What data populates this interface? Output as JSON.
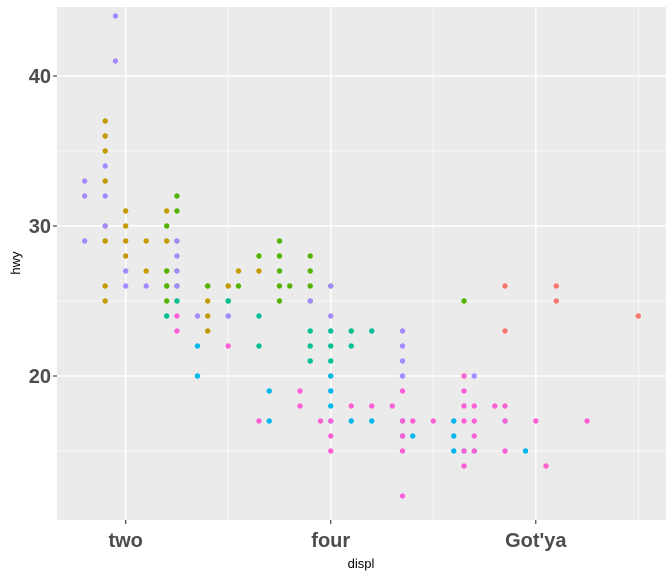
{
  "chart_data": {
    "type": "scatter",
    "title": "",
    "xlabel": "displ",
    "ylabel": "hwy",
    "xlim": [
      1.33,
      7.27
    ],
    "ylim": [
      10.4,
      44.6
    ],
    "x_breaks": [
      2,
      4,
      6
    ],
    "x_tick_labels": [
      "two",
      "four",
      "Got'ya"
    ],
    "x_minor_breaks": [
      3,
      5,
      7
    ],
    "y_breaks": [
      20,
      30,
      40
    ],
    "y_tick_labels": [
      "20",
      "30",
      "40"
    ],
    "y_minor_breaks": [
      15,
      25,
      35
    ],
    "grid": true,
    "legend": "none",
    "series": [
      {
        "color": "#F8766D",
        "points": [
          [
            5.7,
            26
          ],
          [
            5.7,
            23
          ],
          [
            6.2,
            26
          ],
          [
            6.2,
            25
          ],
          [
            7.0,
            24
          ]
        ]
      },
      {
        "color": "#C49A00",
        "points": [
          [
            1.8,
            29
          ],
          [
            1.8,
            29
          ],
          [
            1.8,
            26
          ],
          [
            1.8,
            25
          ],
          [
            1.8,
            30
          ],
          [
            1.8,
            33
          ],
          [
            1.8,
            35
          ],
          [
            1.8,
            36
          ],
          [
            1.8,
            37
          ],
          [
            2.0,
            31
          ],
          [
            2.0,
            30
          ],
          [
            2.0,
            29
          ],
          [
            2.0,
            28
          ],
          [
            2.2,
            29
          ],
          [
            2.2,
            27
          ],
          [
            2.4,
            31
          ],
          [
            2.4,
            29
          ],
          [
            2.4,
            27
          ],
          [
            2.4,
            26
          ],
          [
            2.5,
            27
          ],
          [
            2.5,
            25
          ],
          [
            2.8,
            24
          ],
          [
            2.8,
            25
          ],
          [
            2.8,
            23
          ],
          [
            2.8,
            26
          ],
          [
            3.0,
            26
          ],
          [
            3.0,
            26
          ],
          [
            3.1,
            27
          ],
          [
            3.3,
            27
          ]
        ]
      },
      {
        "color": "#53B400",
        "points": [
          [
            2.4,
            30
          ],
          [
            2.4,
            27
          ],
          [
            2.4,
            26
          ],
          [
            2.4,
            25
          ],
          [
            2.5,
            32
          ],
          [
            2.5,
            31
          ],
          [
            2.5,
            29
          ],
          [
            2.5,
            26
          ],
          [
            2.8,
            26
          ],
          [
            3.0,
            25
          ],
          [
            3.1,
            26
          ],
          [
            3.3,
            28
          ],
          [
            3.5,
            29
          ],
          [
            3.5,
            28
          ],
          [
            3.5,
            27
          ],
          [
            3.5,
            26
          ],
          [
            3.5,
            25
          ],
          [
            3.6,
            26
          ],
          [
            3.8,
            28
          ],
          [
            3.8,
            27
          ],
          [
            3.8,
            26
          ],
          [
            3.8,
            25
          ],
          [
            4.0,
            26
          ],
          [
            4.2,
            23
          ],
          [
            5.3,
            25
          ]
        ]
      },
      {
        "color": "#00C094",
        "points": [
          [
            2.4,
            24
          ],
          [
            2.5,
            25
          ],
          [
            3.0,
            25
          ],
          [
            3.0,
            24
          ],
          [
            3.3,
            24
          ],
          [
            3.3,
            22
          ],
          [
            3.8,
            23
          ],
          [
            3.8,
            22
          ],
          [
            3.8,
            21
          ],
          [
            4.0,
            23
          ],
          [
            4.0,
            22
          ],
          [
            4.0,
            21
          ],
          [
            4.2,
            23
          ],
          [
            4.2,
            22
          ],
          [
            4.4,
            23
          ]
        ]
      },
      {
        "color": "#00B6EB",
        "points": [
          [
            2.7,
            22
          ],
          [
            2.7,
            20
          ],
          [
            3.4,
            19
          ],
          [
            3.4,
            17
          ],
          [
            4.0,
            20
          ],
          [
            4.0,
            19
          ],
          [
            4.0,
            18
          ],
          [
            4.0,
            17
          ],
          [
            4.2,
            17
          ],
          [
            4.4,
            17
          ],
          [
            4.7,
            17
          ],
          [
            4.7,
            16
          ],
          [
            4.8,
            16
          ],
          [
            5.2,
            17
          ],
          [
            5.2,
            16
          ],
          [
            5.2,
            15
          ],
          [
            5.3,
            15
          ],
          [
            5.4,
            15
          ],
          [
            5.7,
            17
          ],
          [
            5.9,
            15
          ]
        ]
      },
      {
        "color": "#A58AFF",
        "points": [
          [
            1.6,
            33
          ],
          [
            1.6,
            32
          ],
          [
            1.6,
            29
          ],
          [
            1.8,
            34
          ],
          [
            1.8,
            32
          ],
          [
            1.8,
            30
          ],
          [
            1.9,
            44
          ],
          [
            1.9,
            41
          ],
          [
            2.0,
            27
          ],
          [
            2.0,
            26
          ],
          [
            2.2,
            26
          ],
          [
            2.5,
            29
          ],
          [
            2.5,
            28
          ],
          [
            2.5,
            27
          ],
          [
            2.5,
            26
          ],
          [
            2.7,
            24
          ],
          [
            3.0,
            24
          ],
          [
            3.8,
            25
          ],
          [
            4.0,
            26
          ],
          [
            4.0,
            24
          ],
          [
            4.7,
            23
          ],
          [
            4.7,
            22
          ],
          [
            4.7,
            21
          ],
          [
            4.7,
            20
          ],
          [
            5.4,
            20
          ]
        ]
      },
      {
        "color": "#FB61D7",
        "points": [
          [
            2.5,
            24
          ],
          [
            2.5,
            23
          ],
          [
            3.0,
            22
          ],
          [
            3.3,
            17
          ],
          [
            3.7,
            19
          ],
          [
            3.7,
            18
          ],
          [
            3.9,
            17
          ],
          [
            4.0,
            17
          ],
          [
            4.0,
            16
          ],
          [
            4.0,
            15
          ],
          [
            4.2,
            18
          ],
          [
            4.4,
            18
          ],
          [
            4.6,
            18
          ],
          [
            4.7,
            19
          ],
          [
            4.7,
            17
          ],
          [
            4.7,
            16
          ],
          [
            4.7,
            15
          ],
          [
            4.7,
            12
          ],
          [
            4.8,
            17
          ],
          [
            5.0,
            17
          ],
          [
            5.3,
            20
          ],
          [
            5.3,
            19
          ],
          [
            5.3,
            18
          ],
          [
            5.3,
            17
          ],
          [
            5.3,
            15
          ],
          [
            5.3,
            14
          ],
          [
            5.4,
            18
          ],
          [
            5.4,
            17
          ],
          [
            5.4,
            16
          ],
          [
            5.4,
            15
          ],
          [
            5.6,
            18
          ],
          [
            5.7,
            18
          ],
          [
            5.7,
            17
          ],
          [
            5.7,
            15
          ],
          [
            6.0,
            17
          ],
          [
            6.1,
            14
          ],
          [
            6.5,
            17
          ]
        ]
      }
    ]
  }
}
